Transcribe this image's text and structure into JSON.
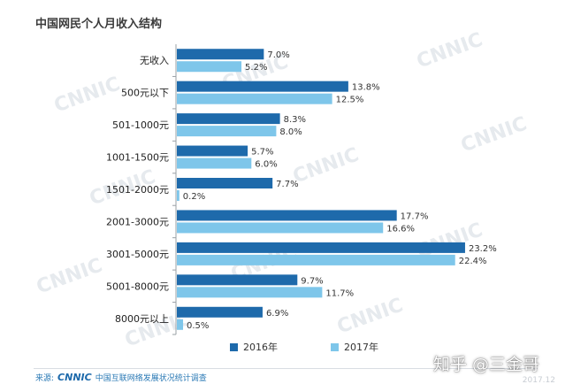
{
  "title": "中国网民个人月收入结构",
  "chart_data": {
    "type": "bar",
    "orientation": "horizontal",
    "categories": [
      "无收入",
      "500元以下",
      "501-1000元",
      "1001-1500元",
      "1501-2000元",
      "2001-3000元",
      "3001-5000元",
      "5001-8000元",
      "8000元以上"
    ],
    "series": [
      {
        "name": "2016年",
        "values": [
          7.0,
          13.8,
          8.3,
          5.7,
          7.7,
          17.7,
          23.2,
          9.7,
          6.9
        ],
        "labels": [
          "7.0%",
          "13.8%",
          "8.3%",
          "5.7%",
          "7.7%",
          "17.7%",
          "23.2%",
          "9.7%",
          "6.9%"
        ],
        "color": "#1e6aab"
      },
      {
        "name": "2017年",
        "values": [
          5.2,
          12.5,
          8.0,
          6.0,
          0.2,
          16.6,
          22.4,
          11.7,
          0.5
        ],
        "labels": [
          "5.2%",
          "12.5%",
          "8.0%",
          "6.0%",
          "0.2%",
          "16.6%",
          "22.4%",
          "11.7%",
          "0.5%"
        ],
        "color": "#7ec6ea"
      }
    ],
    "legend_position": "bottom",
    "grid": false
  },
  "watermark_text": "CNNIC",
  "source": {
    "label": "来源:",
    "brand": "CNNIC",
    "text": "中国互联网络发展状况统计调查"
  },
  "credit": "知乎 @三金哥",
  "page_mark": "2017.12"
}
